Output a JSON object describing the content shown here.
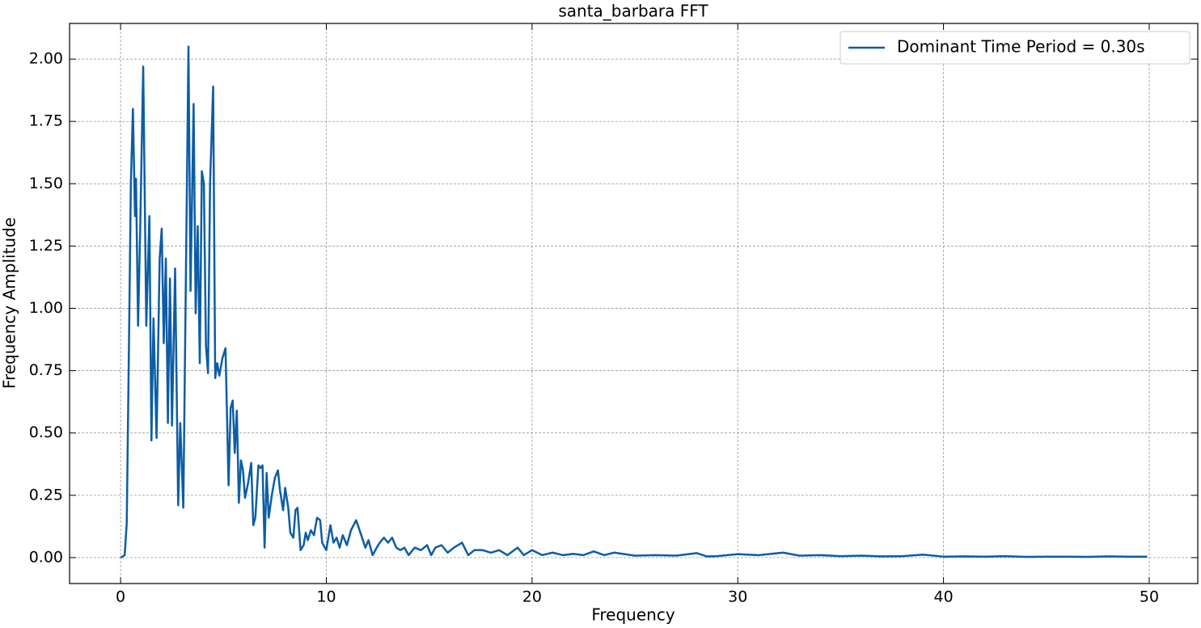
{
  "chart_data": {
    "type": "line",
    "title": "santa_barbara FFT",
    "x_label": "Frequency",
    "y_label": "Frequency Amplitude",
    "x": [
      0,
      0.1,
      0.2,
      0.3,
      0.4,
      0.5,
      0.6,
      0.7,
      0.75,
      0.85,
      0.95,
      1.1,
      1.25,
      1.4,
      1.5,
      1.6,
      1.75,
      1.9,
      2.0,
      2.1,
      2.2,
      2.3,
      2.4,
      2.5,
      2.65,
      2.8,
      2.9,
      3.05,
      3.3,
      3.4,
      3.55,
      3.65,
      3.75,
      3.85,
      3.95,
      4.05,
      4.15,
      4.25,
      4.35,
      4.5,
      4.6,
      4.7,
      4.8,
      4.95,
      5.1,
      5.25,
      5.35,
      5.45,
      5.55,
      5.65,
      5.75,
      5.85,
      5.95,
      6.05,
      6.2,
      6.35,
      6.45,
      6.55,
      6.7,
      6.8,
      6.9,
      7.0,
      7.1,
      7.2,
      7.35,
      7.5,
      7.65,
      7.75,
      7.9,
      8.0,
      8.15,
      8.25,
      8.4,
      8.5,
      8.6,
      8.75,
      8.9,
      9.0,
      9.1,
      9.25,
      9.4,
      9.55,
      9.7,
      9.8,
      10.0,
      10.2,
      10.35,
      10.5,
      10.65,
      10.8,
      11.0,
      11.2,
      11.45,
      11.7,
      11.9,
      12.05,
      12.25,
      12.45,
      12.6,
      12.8,
      13.0,
      13.2,
      13.4,
      13.6,
      13.8,
      14.0,
      14.3,
      14.6,
      14.9,
      15.1,
      15.3,
      15.6,
      15.9,
      16.2,
      16.6,
      16.9,
      17.2,
      17.6,
      18.0,
      18.4,
      18.8,
      19.3,
      19.6,
      20.0,
      20.5,
      21,
      21.5,
      22,
      22.5,
      23,
      23.5,
      24,
      25,
      26,
      27,
      28,
      28.5,
      29,
      30,
      31,
      32.2,
      33,
      34,
      35,
      36,
      37,
      38,
      39,
      40,
      41,
      42,
      43,
      44,
      45,
      46,
      47,
      48,
      49,
      49.9
    ],
    "series": [
      {
        "name": "Dominant Time Period = 0.30s",
        "color": "#0c5da5",
        "values": [
          0,
          0.005,
          0.01,
          0.14,
          0.8,
          1.5,
          1.8,
          1.37,
          1.52,
          0.93,
          1.3,
          1.97,
          0.93,
          1.37,
          0.47,
          0.96,
          0.48,
          1.2,
          1.32,
          0.86,
          1.2,
          0.54,
          1.12,
          0.53,
          1.16,
          0.21,
          0.54,
          0.2,
          2.05,
          1.07,
          1.82,
          0.98,
          1.33,
          0.78,
          1.55,
          1.5,
          0.85,
          0.74,
          1.5,
          1.89,
          0.72,
          0.78,
          0.73,
          0.8,
          0.84,
          0.29,
          0.6,
          0.63,
          0.42,
          0.59,
          0.22,
          0.39,
          0.35,
          0.24,
          0.3,
          0.38,
          0.13,
          0.16,
          0.37,
          0.36,
          0.37,
          0.04,
          0.34,
          0.16,
          0.25,
          0.32,
          0.35,
          0.27,
          0.19,
          0.28,
          0.2,
          0.1,
          0.08,
          0.19,
          0.2,
          0.03,
          0.05,
          0.1,
          0.07,
          0.11,
          0.09,
          0.16,
          0.15,
          0.06,
          0.03,
          0.13,
          0.06,
          0.08,
          0.04,
          0.09,
          0.05,
          0.11,
          0.15,
          0.09,
          0.04,
          0.07,
          0.01,
          0.04,
          0.06,
          0.08,
          0.06,
          0.08,
          0.04,
          0.03,
          0.04,
          0.01,
          0.04,
          0.03,
          0.05,
          0.01,
          0.04,
          0.05,
          0.02,
          0.04,
          0.06,
          0.01,
          0.03,
          0.03,
          0.02,
          0.03,
          0.01,
          0.04,
          0.01,
          0.03,
          0.01,
          0.02,
          0.01,
          0.015,
          0.01,
          0.025,
          0.01,
          0.02,
          0.008,
          0.01,
          0.008,
          0.018,
          0.005,
          0.006,
          0.014,
          0.01,
          0.02,
          0.008,
          0.01,
          0.006,
          0.008,
          0.005,
          0.006,
          0.012,
          0.004,
          0.005,
          0.004,
          0.006,
          0.003,
          0.004,
          0.004,
          0.003,
          0.005,
          0.004,
          0.004
        ]
      }
    ],
    "xlim": [
      -2.48,
      52.36
    ],
    "ylim": [
      -0.104,
      2.143
    ],
    "xticks": [
      0,
      10,
      20,
      30,
      40,
      50
    ],
    "yticks": [
      {
        "value": 0,
        "label": "0.00"
      },
      {
        "value": 0.25,
        "label": "0.25"
      },
      {
        "value": 0.5,
        "label": "0.50"
      },
      {
        "value": 0.75,
        "label": "0.75"
      },
      {
        "value": 1,
        "label": "1.00"
      },
      {
        "value": 1.25,
        "label": "1.25"
      },
      {
        "value": 1.5,
        "label": "1.50"
      },
      {
        "value": 1.75,
        "label": "1.75"
      },
      {
        "value": 2,
        "label": "2.00"
      }
    ],
    "grid": true,
    "legend": "upper-right"
  }
}
